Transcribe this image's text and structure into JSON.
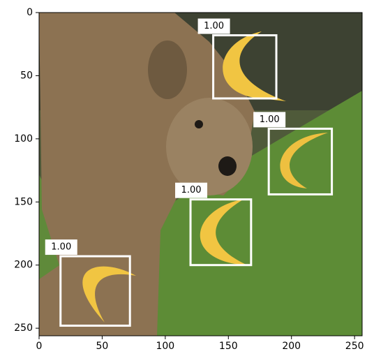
{
  "chart_data": {
    "type": "detection",
    "values": [
      1,
      1,
      1,
      1
    ],
    "value_labels": [
      "1.00",
      "1.00",
      "1.00",
      "1.00"
    ],
    "boxes": [
      [
        138,
        18,
        188,
        68
      ],
      [
        182,
        92,
        232,
        144
      ],
      [
        120,
        148,
        168,
        200
      ],
      [
        17,
        193,
        72,
        248
      ]
    ],
    "color": "#ffffff",
    "xlim": [
      0,
      256
    ],
    "ylim": [
      256,
      0
    ],
    "xticks": [
      0,
      50,
      100,
      150,
      200,
      250
    ],
    "yticks": [
      0,
      50,
      100,
      150,
      200,
      250
    ]
  }
}
